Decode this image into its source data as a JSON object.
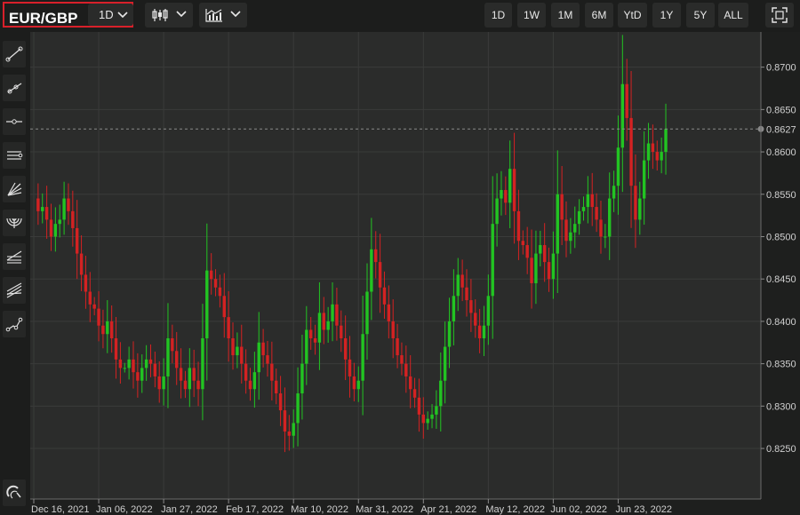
{
  "toolbar": {
    "symbol": "EUR/GBP",
    "timeframe": "1D",
    "ranges": [
      "1D",
      "1W",
      "1M",
      "6M",
      "YtD",
      "1Y",
      "5Y",
      "ALL"
    ]
  },
  "sidebar": {
    "tools": [
      "trend-line-icon",
      "ray-icon",
      "horizontal-line-icon",
      "parallel-channel-icon",
      "fan-icon",
      "fibonacci-arc-icon",
      "fibonacci-retracement-icon",
      "pitchfork-icon",
      "path-icon",
      "magnet-icon"
    ]
  },
  "colors": {
    "up": "#22c422",
    "down": "#d42222",
    "background": "#2b2c2b",
    "grid": "#3a3b3a"
  },
  "chart_data": {
    "type": "candlestick",
    "ylim": [
      0.8205,
      0.873
    ],
    "yticks": [
      0.825,
      0.83,
      0.835,
      0.84,
      0.845,
      0.85,
      0.855,
      0.86,
      0.865,
      0.87
    ],
    "ytick_labels": [
      "0.8250",
      "0.8300",
      "0.8350",
      "0.8400",
      "0.8450",
      "0.8500",
      "0.8550",
      "0.8600",
      "0.8650",
      "0.8700"
    ],
    "last_price": 0.8627,
    "last_price_label": "0.8627",
    "xticks": [
      {
        "label": "Dec 16, 2021",
        "index": 0
      },
      {
        "label": "Jan 06, 2022",
        "index": 15
      },
      {
        "label": "Jan 27, 2022",
        "index": 30
      },
      {
        "label": "Feb 17, 2022",
        "index": 45
      },
      {
        "label": "Mar 10, 2022",
        "index": 60
      },
      {
        "label": "Mar 31, 2022",
        "index": 75
      },
      {
        "label": "Apr 21, 2022",
        "index": 90
      },
      {
        "label": "May 12, 2022",
        "index": 105
      },
      {
        "label": "Jun 02, 2022",
        "index": 120
      },
      {
        "label": "Jun 23, 2022",
        "index": 135
      }
    ],
    "closes": [
      0.8545,
      0.853,
      0.8535,
      0.852,
      0.85,
      0.8515,
      0.852,
      0.8545,
      0.853,
      0.851,
      0.848,
      0.8455,
      0.8435,
      0.842,
      0.8415,
      0.8395,
      0.8385,
      0.84,
      0.838,
      0.8355,
      0.8345,
      0.8345,
      0.8355,
      0.834,
      0.833,
      0.8345,
      0.8355,
      0.835,
      0.8335,
      0.832,
      0.8335,
      0.838,
      0.8365,
      0.8345,
      0.833,
      0.832,
      0.8345,
      0.833,
      0.832,
      0.838,
      0.846,
      0.845,
      0.844,
      0.843,
      0.8405,
      0.838,
      0.836,
      0.837,
      0.835,
      0.833,
      0.832,
      0.834,
      0.8375,
      0.836,
      0.835,
      0.833,
      0.8315,
      0.8295,
      0.827,
      0.8265,
      0.828,
      0.8315,
      0.835,
      0.839,
      0.838,
      0.8375,
      0.841,
      0.839,
      0.84,
      0.842,
      0.8395,
      0.838,
      0.8355,
      0.8335,
      0.832,
      0.833,
      0.8385,
      0.8435,
      0.8485,
      0.847,
      0.844,
      0.842,
      0.84,
      0.838,
      0.836,
      0.835,
      0.8335,
      0.832,
      0.831,
      0.829,
      0.828,
      0.8285,
      0.829,
      0.83,
      0.833,
      0.837,
      0.84,
      0.843,
      0.8455,
      0.844,
      0.8425,
      0.841,
      0.8395,
      0.838,
      0.8395,
      0.843,
      0.8515,
      0.8545,
      0.8555,
      0.854,
      0.858,
      0.853,
      0.8495,
      0.849,
      0.8475,
      0.8445,
      0.848,
      0.849,
      0.847,
      0.845,
      0.848,
      0.855,
      0.852,
      0.8495,
      0.8505,
      0.8515,
      0.853,
      0.8535,
      0.855,
      0.8535,
      0.852,
      0.85,
      0.85,
      0.8545,
      0.856,
      0.8605,
      0.868,
      0.864,
      0.856,
      0.852,
      0.8545,
      0.859,
      0.861,
      0.86,
      0.859,
      0.86,
      0.8627
    ]
  }
}
